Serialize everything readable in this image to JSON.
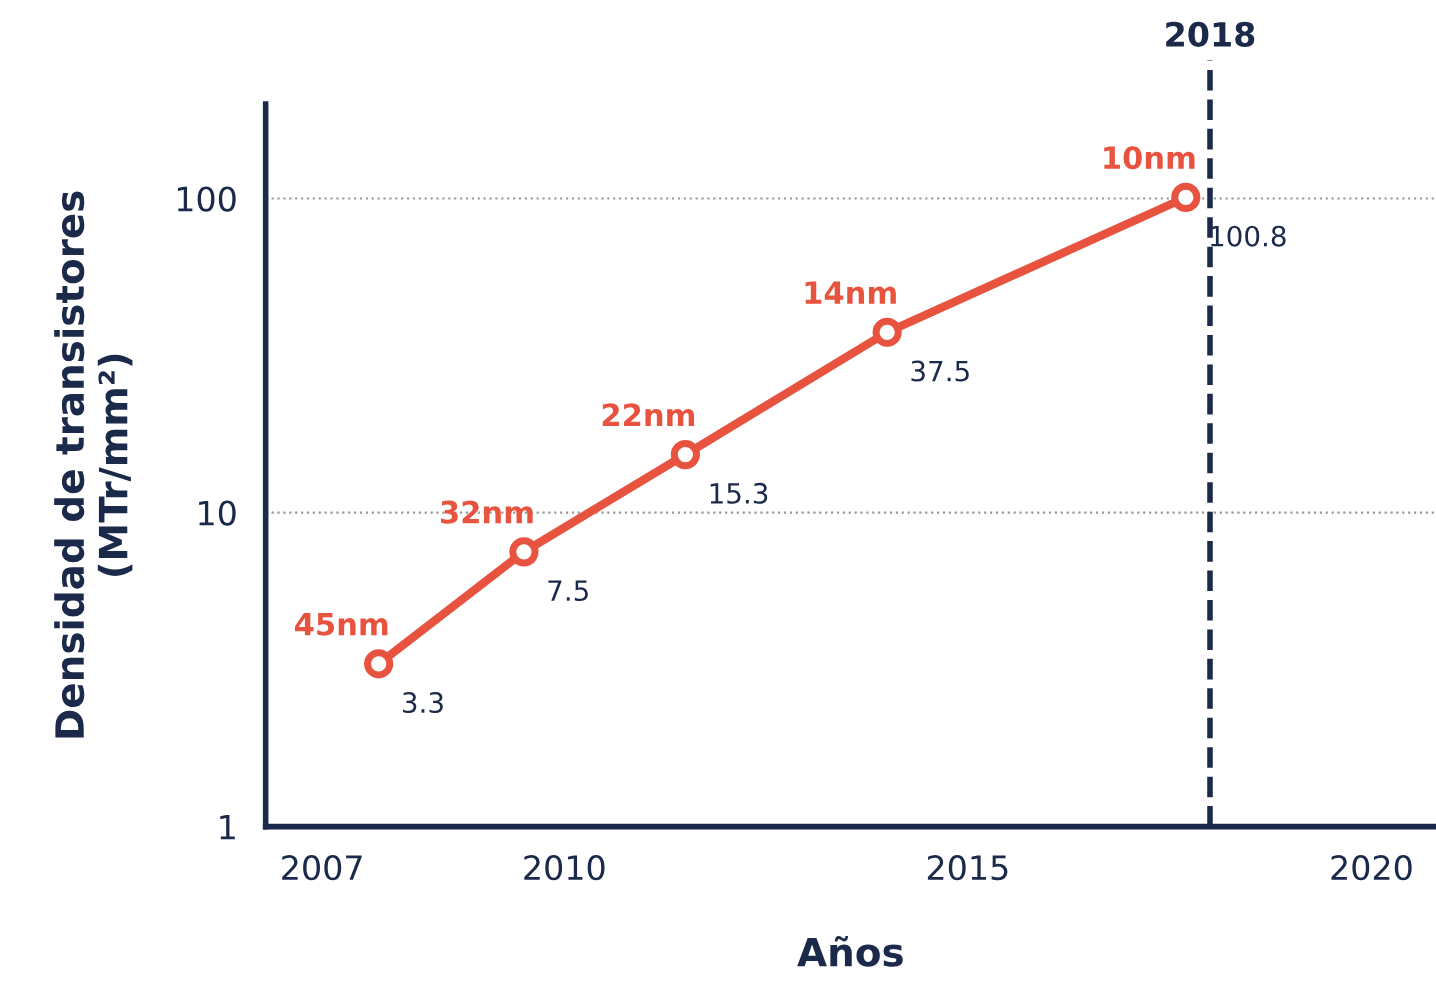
{
  "chart_data": {
    "type": "line",
    "xlabel": "Años",
    "ylabel": "Densidad de transistores\n(MTr/mm²)",
    "x": [
      2007.7,
      2009.5,
      2011.5,
      2014.0,
      2017.7
    ],
    "series": [
      {
        "color": "#e8533f",
        "values": [
          3.3,
          7.5,
          15.3,
          37.5,
          100.8
        ]
      }
    ],
    "data_labels": true,
    "marker": "circle",
    "line_style": "solid",
    "log": "y",
    "grid": "y",
    "xlim": [
      2006.3,
      2020.8
    ],
    "xticks": [
      2007,
      2010,
      2015,
      2020
    ],
    "ylim": [
      1,
      200
    ],
    "yticks": [
      1,
      10,
      100
    ],
    "ref_lines": [
      {
        "axis": "x",
        "value": 2018,
        "label": "2018",
        "color": "#1b2a4a",
        "line_style": "dashed"
      }
    ],
    "annotations": [
      {
        "text": "45nm",
        "x": 2007.7,
        "y": 3.3
      },
      {
        "text": "32nm",
        "x": 2009.5,
        "y": 7.5
      },
      {
        "text": "22nm",
        "x": 2011.5,
        "y": 15.3
      },
      {
        "text": "14nm",
        "x": 2014.0,
        "y": 37.5
      },
      {
        "text": "10nm",
        "x": 2017.7,
        "y": 100.8
      }
    ]
  }
}
